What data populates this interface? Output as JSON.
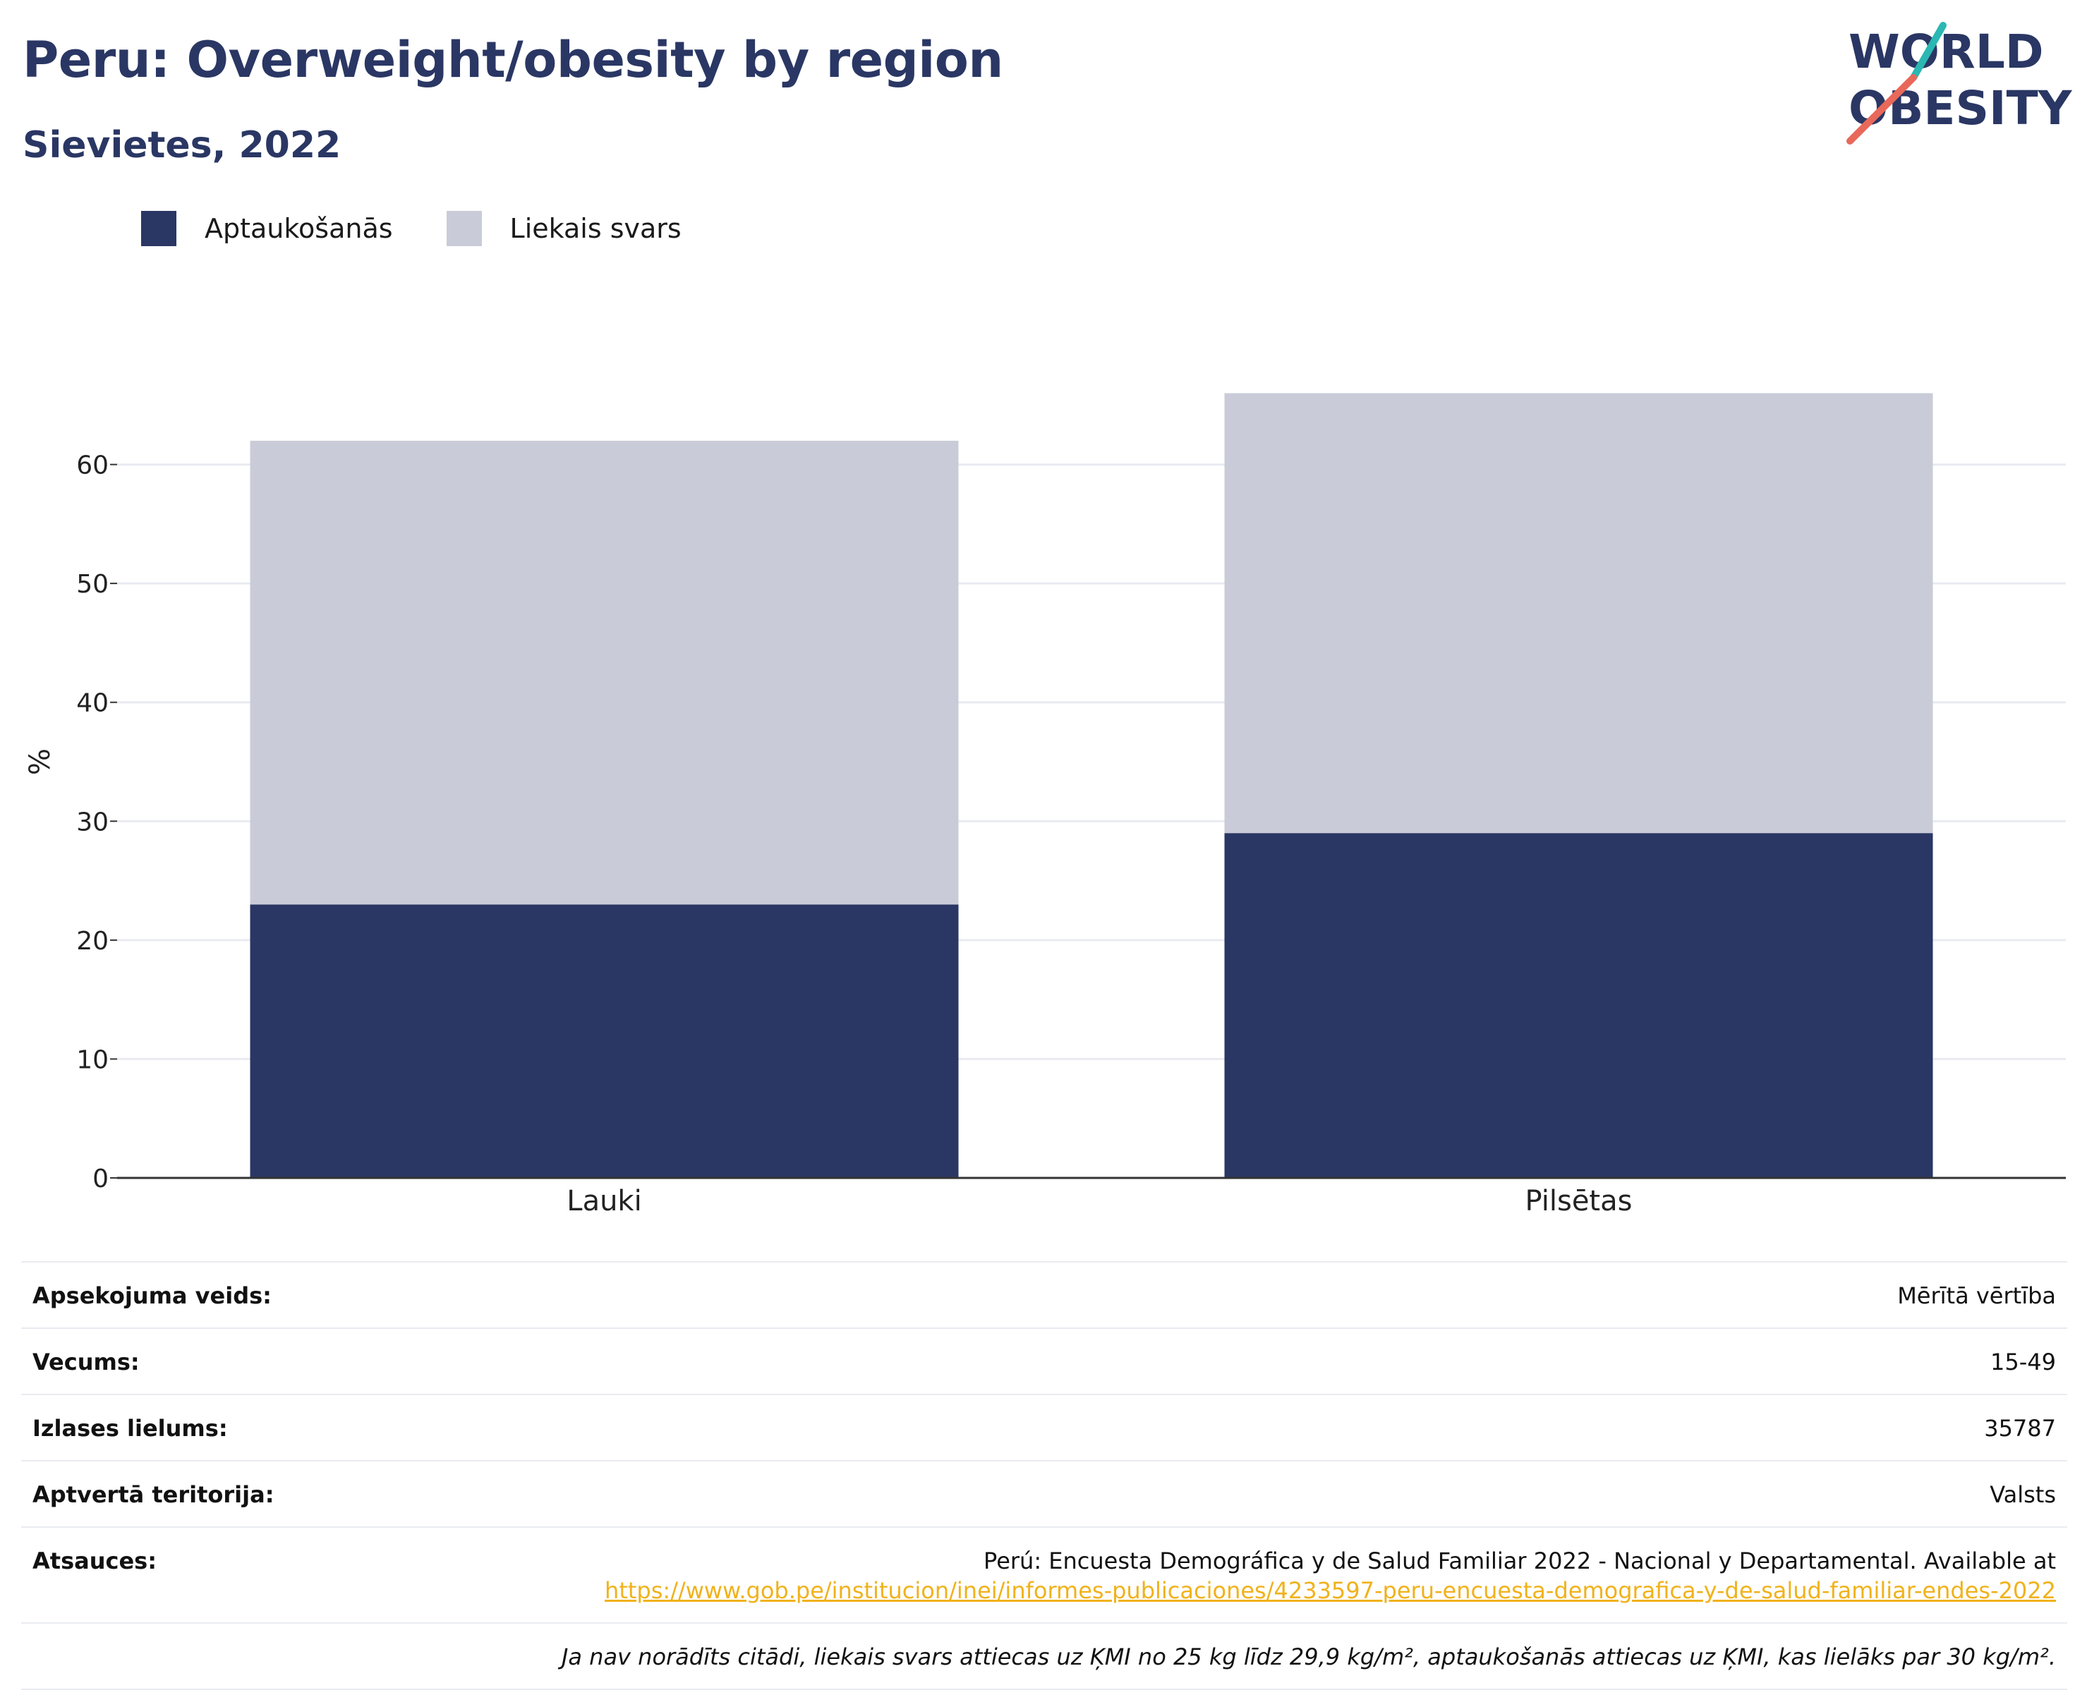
{
  "header": {
    "title": "Peru: Overweight/obesity by region",
    "subtitle": "Sievietes, 2022"
  },
  "logo": {
    "line1": "WORLD",
    "line2": "OBESITY",
    "accent_teal": "#2bb7b3",
    "accent_red": "#e8685a",
    "text_color": "#2a3764"
  },
  "colors": {
    "obesity": "#2a3764",
    "overweight": "#c9ccd8",
    "axis": "#333333",
    "grid": "#e9ebf1",
    "link": "#f0b21c"
  },
  "chart_data": {
    "type": "bar",
    "stacked": true,
    "categories": [
      "Lauki",
      "Pilsētas"
    ],
    "series": [
      {
        "name": "Aptaukošanās",
        "values": [
          23,
          29
        ]
      },
      {
        "name": "Liekais svars",
        "values": [
          39,
          37
        ]
      }
    ],
    "ylabel": "%",
    "ylim": [
      0,
      70
    ],
    "yticks": [
      0,
      10,
      20,
      30,
      40,
      50,
      60
    ],
    "grid": true,
    "legend": "top-left"
  },
  "meta": {
    "rows": [
      {
        "label": "Apsekojuma veids:",
        "value": "Mērītā vērtība"
      },
      {
        "label": "Vecums:",
        "value": "15-49"
      },
      {
        "label": "Izlases lielums:",
        "value": "35787"
      },
      {
        "label": "Aptvertā teritorija:",
        "value": "Valsts"
      }
    ],
    "source_label": "Atsauces:",
    "source_text": "Perú: Encuesta Demográfica y de Salud Familiar 2022 - Nacional y Departamental. Available at",
    "source_url": "https://www.gob.pe/institucion/inei/informes-publicaciones/4233597-peru-encuesta-demografica-y-de-salud-familiar-endes-2022",
    "note": "Ja nav norādīts citādi, liekais svars attiecas uz ĶMI no 25 kg līdz 29,9 kg/m², aptaukošanās attiecas uz ĶMI, kas lielāks par 30 kg/m²."
  }
}
